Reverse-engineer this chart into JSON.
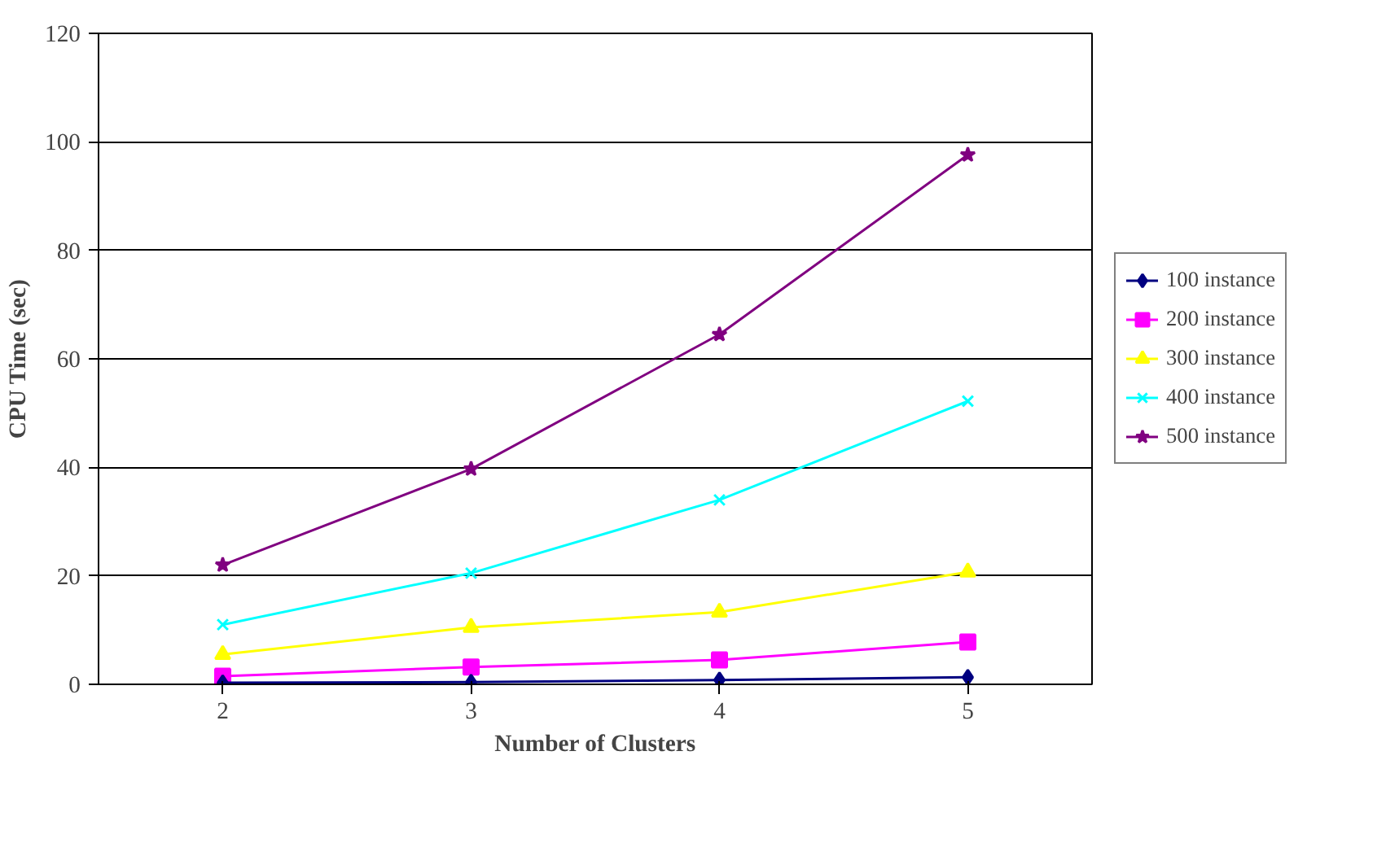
{
  "chart_data": {
    "type": "line",
    "xlabel": "Number of Clusters",
    "ylabel": "CPU Time (sec)",
    "categories": [
      "2",
      "3",
      "4",
      "5"
    ],
    "ylim": [
      0,
      120
    ],
    "yticks": [
      0,
      20,
      40,
      60,
      80,
      100,
      120
    ],
    "grid": "y",
    "legend": "right",
    "series": [
      {
        "name": "100 instance",
        "color": "#000080",
        "marker": "diamond",
        "values": [
          0.3,
          0.4,
          0.8,
          1.3
        ]
      },
      {
        "name": "200 instance",
        "color": "#ff00ff",
        "marker": "square",
        "values": [
          1.5,
          3.2,
          4.5,
          7.8
        ]
      },
      {
        "name": "300 instance",
        "color": "#ffff00",
        "marker": "triangle",
        "values": [
          5.5,
          10.5,
          13.3,
          20.7
        ]
      },
      {
        "name": "400 instance",
        "color": "#00ffff",
        "marker": "cross",
        "values": [
          11,
          20.5,
          34,
          52.2
        ]
      },
      {
        "name": "500 instance",
        "color": "#800080",
        "marker": "star",
        "values": [
          22,
          39.7,
          64.5,
          97.6
        ]
      }
    ]
  }
}
